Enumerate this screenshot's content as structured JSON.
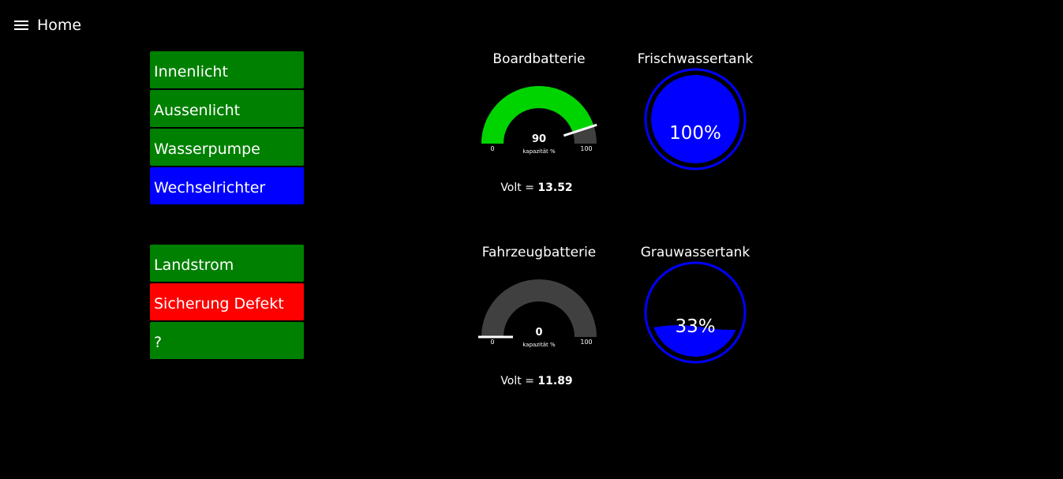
{
  "header": {
    "title": "Home",
    "menu_icon": "hamburger-menu-icon"
  },
  "switches_group1": [
    {
      "label": "Innenlicht",
      "color": "#008000"
    },
    {
      "label": "Aussenlicht",
      "color": "#008000"
    },
    {
      "label": "Wasserpumpe",
      "color": "#008000"
    },
    {
      "label": "Wechselrichter",
      "color": "#0000FF"
    }
  ],
  "switches_group2": [
    {
      "label": "Landstrom",
      "color": "#008000"
    },
    {
      "label": "Sicherung Defekt",
      "color": "#FF0000"
    },
    {
      "label": "?",
      "color": "#008000"
    }
  ],
  "boardbatterie": {
    "title": "Boardbatterie",
    "value": 90,
    "min": 0,
    "max": 100,
    "value_text": "90",
    "min_text": "0",
    "max_text": "100",
    "unit_label": "kapazität %",
    "fill_color": "#00D400",
    "track_color": "#404040",
    "volt_label": "Volt = ",
    "volt_value": "13.52"
  },
  "fahrzeugbatterie": {
    "title": "Fahrzeugbatterie",
    "value": 0,
    "min": 0,
    "max": 100,
    "value_text": "0",
    "min_text": "0",
    "max_text": "100",
    "unit_label": "kapazität %",
    "fill_color": "#00D400",
    "track_color": "#404040",
    "volt_label": "Volt = ",
    "volt_value": "11.89"
  },
  "frischwassertank": {
    "title": "Frischwassertank",
    "percent": 100,
    "percent_text": "100%",
    "color": "#0000FF"
  },
  "grauwassertank": {
    "title": "Grauwassertank",
    "percent": 33,
    "percent_text": "33%",
    "color": "#0000FF"
  }
}
